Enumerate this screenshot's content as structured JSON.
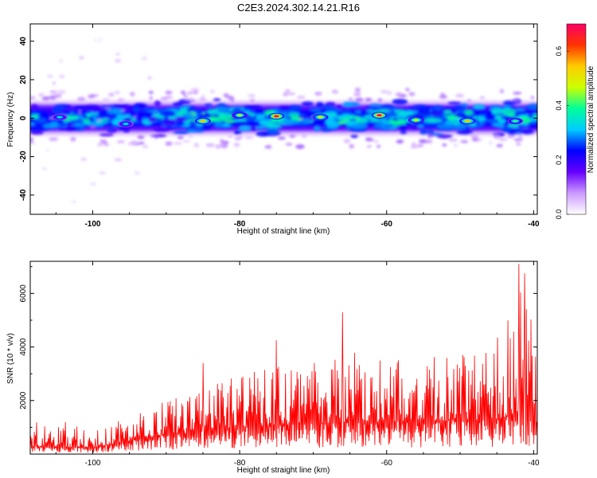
{
  "figure": {
    "title": "C2E3.2024.302.14.21.R16"
  },
  "chart_data": [
    {
      "type": "heatmap",
      "title": "C2E3.2024.302.14.21.R16",
      "xlabel": "Height of straight line (km)",
      "ylabel": "Frequency (Hz)",
      "xlim": [
        -108.5,
        -39.5
      ],
      "ylim": [
        -50,
        49
      ],
      "xticks": [
        -100,
        -80,
        -60,
        -40
      ],
      "yticks": [
        -40,
        -20,
        0,
        20,
        40
      ],
      "colorbar": {
        "label": "Normalized spectral amplitude",
        "range": [
          0.0,
          0.7
        ],
        "ticks": [
          0.0,
          0.2,
          0.4,
          0.6
        ],
        "colors": [
          "#ffffff",
          "#cc99ff",
          "#6600ff",
          "#0000ff",
          "#00ccff",
          "#00ff99",
          "#ccff00",
          "#ffcc00",
          "#ff3300",
          "#ff0066"
        ]
      },
      "band": {
        "center_freq": 0,
        "half_width": 9
      },
      "hotspots": [
        {
          "x": -104.5,
          "freq": 0.5,
          "amplitude": 0.35
        },
        {
          "x": -95.5,
          "freq": -3,
          "amplitude": 0.35
        },
        {
          "x": -85,
          "freq": -1.5,
          "amplitude": 0.55
        },
        {
          "x": -80,
          "freq": 1.5,
          "amplitude": 0.45
        },
        {
          "x": -75,
          "freq": 1,
          "amplitude": 0.7
        },
        {
          "x": -69,
          "freq": 0.5,
          "amplitude": 0.5
        },
        {
          "x": -61,
          "freq": 1.5,
          "amplitude": 0.7
        },
        {
          "x": -56,
          "freq": -1,
          "amplitude": 0.5
        },
        {
          "x": -49,
          "freq": -1.5,
          "amplitude": 0.55
        },
        {
          "x": -42.5,
          "freq": -1.5,
          "amplitude": 0.4
        }
      ]
    },
    {
      "type": "line",
      "xlabel": "Height of straight line (km)",
      "ylabel": "SNR (10 * v/v)",
      "xlim": [
        -108.5,
        -39.5
      ],
      "ylim": [
        0,
        7200
      ],
      "xticks": [
        -100,
        -80,
        -60,
        -40
      ],
      "yticks": [
        2000,
        4000,
        6000
      ],
      "color": "#ff0000",
      "envelope": {
        "x": [
          -108.5,
          -105,
          -100,
          -95,
          -92,
          -90,
          -87,
          -85,
          -80,
          -75,
          -70,
          -65,
          -60,
          -55,
          -50,
          -45,
          -43,
          -42,
          -41,
          -40,
          -39.5
        ],
        "base": [
          300,
          250,
          250,
          500,
          650,
          750,
          800,
          900,
          1000,
          1100,
          1150,
          1200,
          1200,
          1250,
          1250,
          1300,
          1500,
          1600,
          1400,
          1200,
          1100
        ],
        "peak": [
          1350,
          1350,
          900,
          1400,
          1700,
          2600,
          2700,
          3100,
          3100,
          3700,
          3500,
          4300,
          3400,
          3900,
          3700,
          4400,
          5000,
          7100,
          6600,
          4400,
          3800
        ]
      },
      "notable_peaks": [
        {
          "x": -85,
          "y": 3400
        },
        {
          "x": -75,
          "y": 4250
        },
        {
          "x": -66,
          "y": 5300
        },
        {
          "x": -43.5,
          "y": 5000
        },
        {
          "x": -42,
          "y": 7100
        },
        {
          "x": -41.2,
          "y": 6750
        }
      ]
    }
  ]
}
